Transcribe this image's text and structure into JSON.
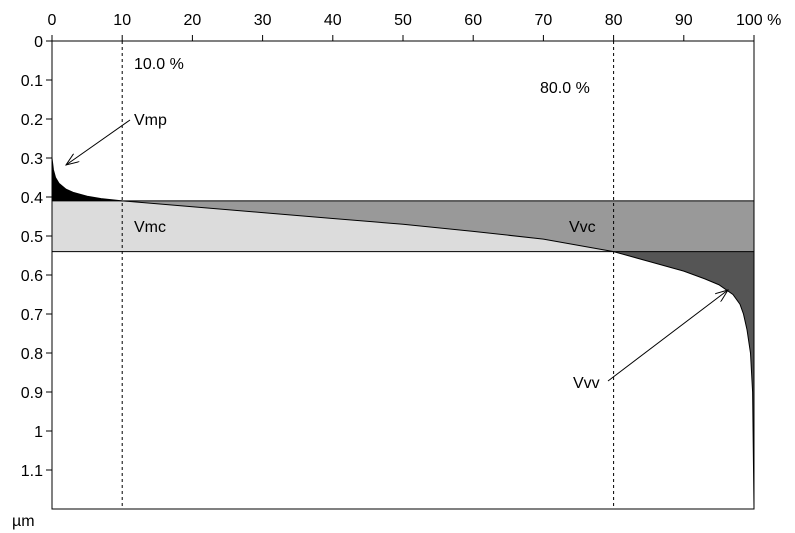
{
  "chart_data": {
    "type": "area",
    "title": "",
    "xlabel": "",
    "ylabel": "",
    "x_unit": "%",
    "y_unit": "µm",
    "xlim": [
      0,
      100
    ],
    "ylim": [
      0,
      1.2
    ],
    "y_inverted": true,
    "x_axis_position": "top",
    "x_ticks": [
      {
        "v": 0,
        "label": "0"
      },
      {
        "v": 10,
        "label": "10"
      },
      {
        "v": 20,
        "label": "20"
      },
      {
        "v": 30,
        "label": "30"
      },
      {
        "v": 40,
        "label": "40"
      },
      {
        "v": 50,
        "label": "50"
      },
      {
        "v": 60,
        "label": "60"
      },
      {
        "v": 70,
        "label": "70"
      },
      {
        "v": 80,
        "label": "80"
      },
      {
        "v": 90,
        "label": "90"
      },
      {
        "v": 100,
        "label": "100 %"
      }
    ],
    "y_ticks": [
      {
        "v": 0,
        "label": "0"
      },
      {
        "v": 0.1,
        "label": "0.1"
      },
      {
        "v": 0.2,
        "label": "0.2"
      },
      {
        "v": 0.3,
        "label": "0.3"
      },
      {
        "v": 0.4,
        "label": "0.4"
      },
      {
        "v": 0.5,
        "label": "0.5"
      },
      {
        "v": 0.6,
        "label": "0.6"
      },
      {
        "v": 0.7,
        "label": "0.7"
      },
      {
        "v": 0.8,
        "label": "0.8"
      },
      {
        "v": 0.9,
        "label": "0.9"
      },
      {
        "v": 1,
        "label": "1"
      },
      {
        "v": 1.1,
        "label": "1.1"
      }
    ],
    "curve": {
      "x": [
        0,
        0.2,
        0.5,
        1,
        2,
        3,
        5,
        7,
        10,
        20,
        30,
        40,
        50,
        60,
        70,
        80,
        85,
        90,
        93,
        95,
        97,
        98,
        98.5,
        99,
        99.5,
        99.8,
        100
      ],
      "y": [
        0.3,
        0.33,
        0.35,
        0.365,
        0.38,
        0.388,
        0.398,
        0.404,
        0.41,
        0.425,
        0.44,
        0.455,
        0.47,
        0.488,
        0.508,
        0.54,
        0.565,
        0.59,
        0.61,
        0.625,
        0.65,
        0.675,
        0.7,
        0.74,
        0.8,
        0.9,
        1.2
      ]
    },
    "reference_lines": {
      "x": [
        10,
        80
      ],
      "y": [
        0.41,
        0.54
      ]
    },
    "regions": [
      {
        "name": "Vmp",
        "color": "#000000"
      },
      {
        "name": "Vmc",
        "color": "#dcdcdc"
      },
      {
        "name": "Vvc",
        "color": "#999999"
      },
      {
        "name": "Vvv",
        "color": "#555555"
      }
    ],
    "annotations": {
      "pct_low": "10.0 %",
      "pct_high": "80.0 %",
      "vmp": "Vmp",
      "vmc": "Vmc",
      "vvc": "Vvc",
      "vvv": "Vvv"
    },
    "y_unit_label": "µm",
    "grid": false
  }
}
